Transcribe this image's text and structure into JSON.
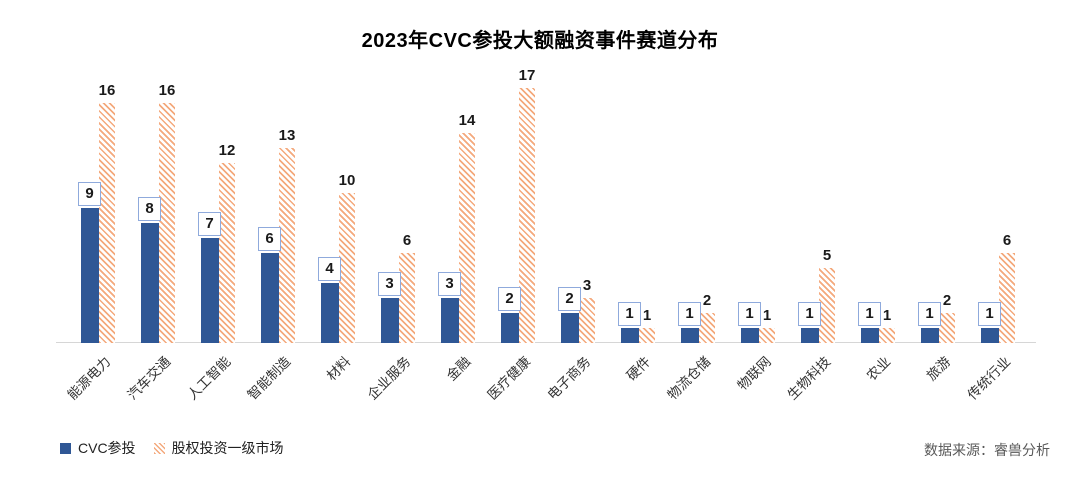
{
  "title": "2023年CVC参投大额融资事件赛道分布",
  "legend": {
    "items": [
      {
        "label": "CVC参投",
        "swatch": "solid-blue-square"
      },
      {
        "label": "股权投资一级市场",
        "swatch": "orange-diagonal-hatch-square"
      }
    ]
  },
  "source_note": "数据来源：睿兽分析",
  "colors": {
    "cvc_blue": "#2F5795",
    "hatch_orange": "#F4A97C",
    "value_box_border": "#8FAADC",
    "axis_line": "#D6D6D6",
    "source_text": "#595959"
  },
  "chart_data": {
    "type": "bar",
    "title": "2023年CVC参投大额融资事件赛道分布",
    "categories": [
      "能源电力",
      "汽车交通",
      "人工智能",
      "智能制造",
      "材料",
      "企业服务",
      "金融",
      "医疗健康",
      "电子商务",
      "硬件",
      "物流仓储",
      "物联网",
      "生物科技",
      "农业",
      "旅游",
      "传统行业"
    ],
    "series": [
      {
        "name": "CVC参投",
        "values": [
          9,
          8,
          7,
          6,
          4,
          3,
          3,
          2,
          2,
          1,
          1,
          1,
          1,
          1,
          1,
          1
        ],
        "style": "solid",
        "color": "#2F5795"
      },
      {
        "name": "股权投资一级市场",
        "values": [
          16,
          16,
          12,
          13,
          10,
          6,
          14,
          17,
          3,
          1,
          2,
          1,
          5,
          1,
          2,
          6
        ],
        "style": "diagonal-hatch",
        "color": "#F4A97C"
      }
    ],
    "xlabel": "",
    "ylabel": "",
    "ylim": [
      0,
      17
    ],
    "grid": false,
    "y_axis_visible": false,
    "value_labels": true,
    "cvc_value_label_style": "boxed",
    "legend_position": "bottom-left",
    "x_tick_rotation": -45
  }
}
